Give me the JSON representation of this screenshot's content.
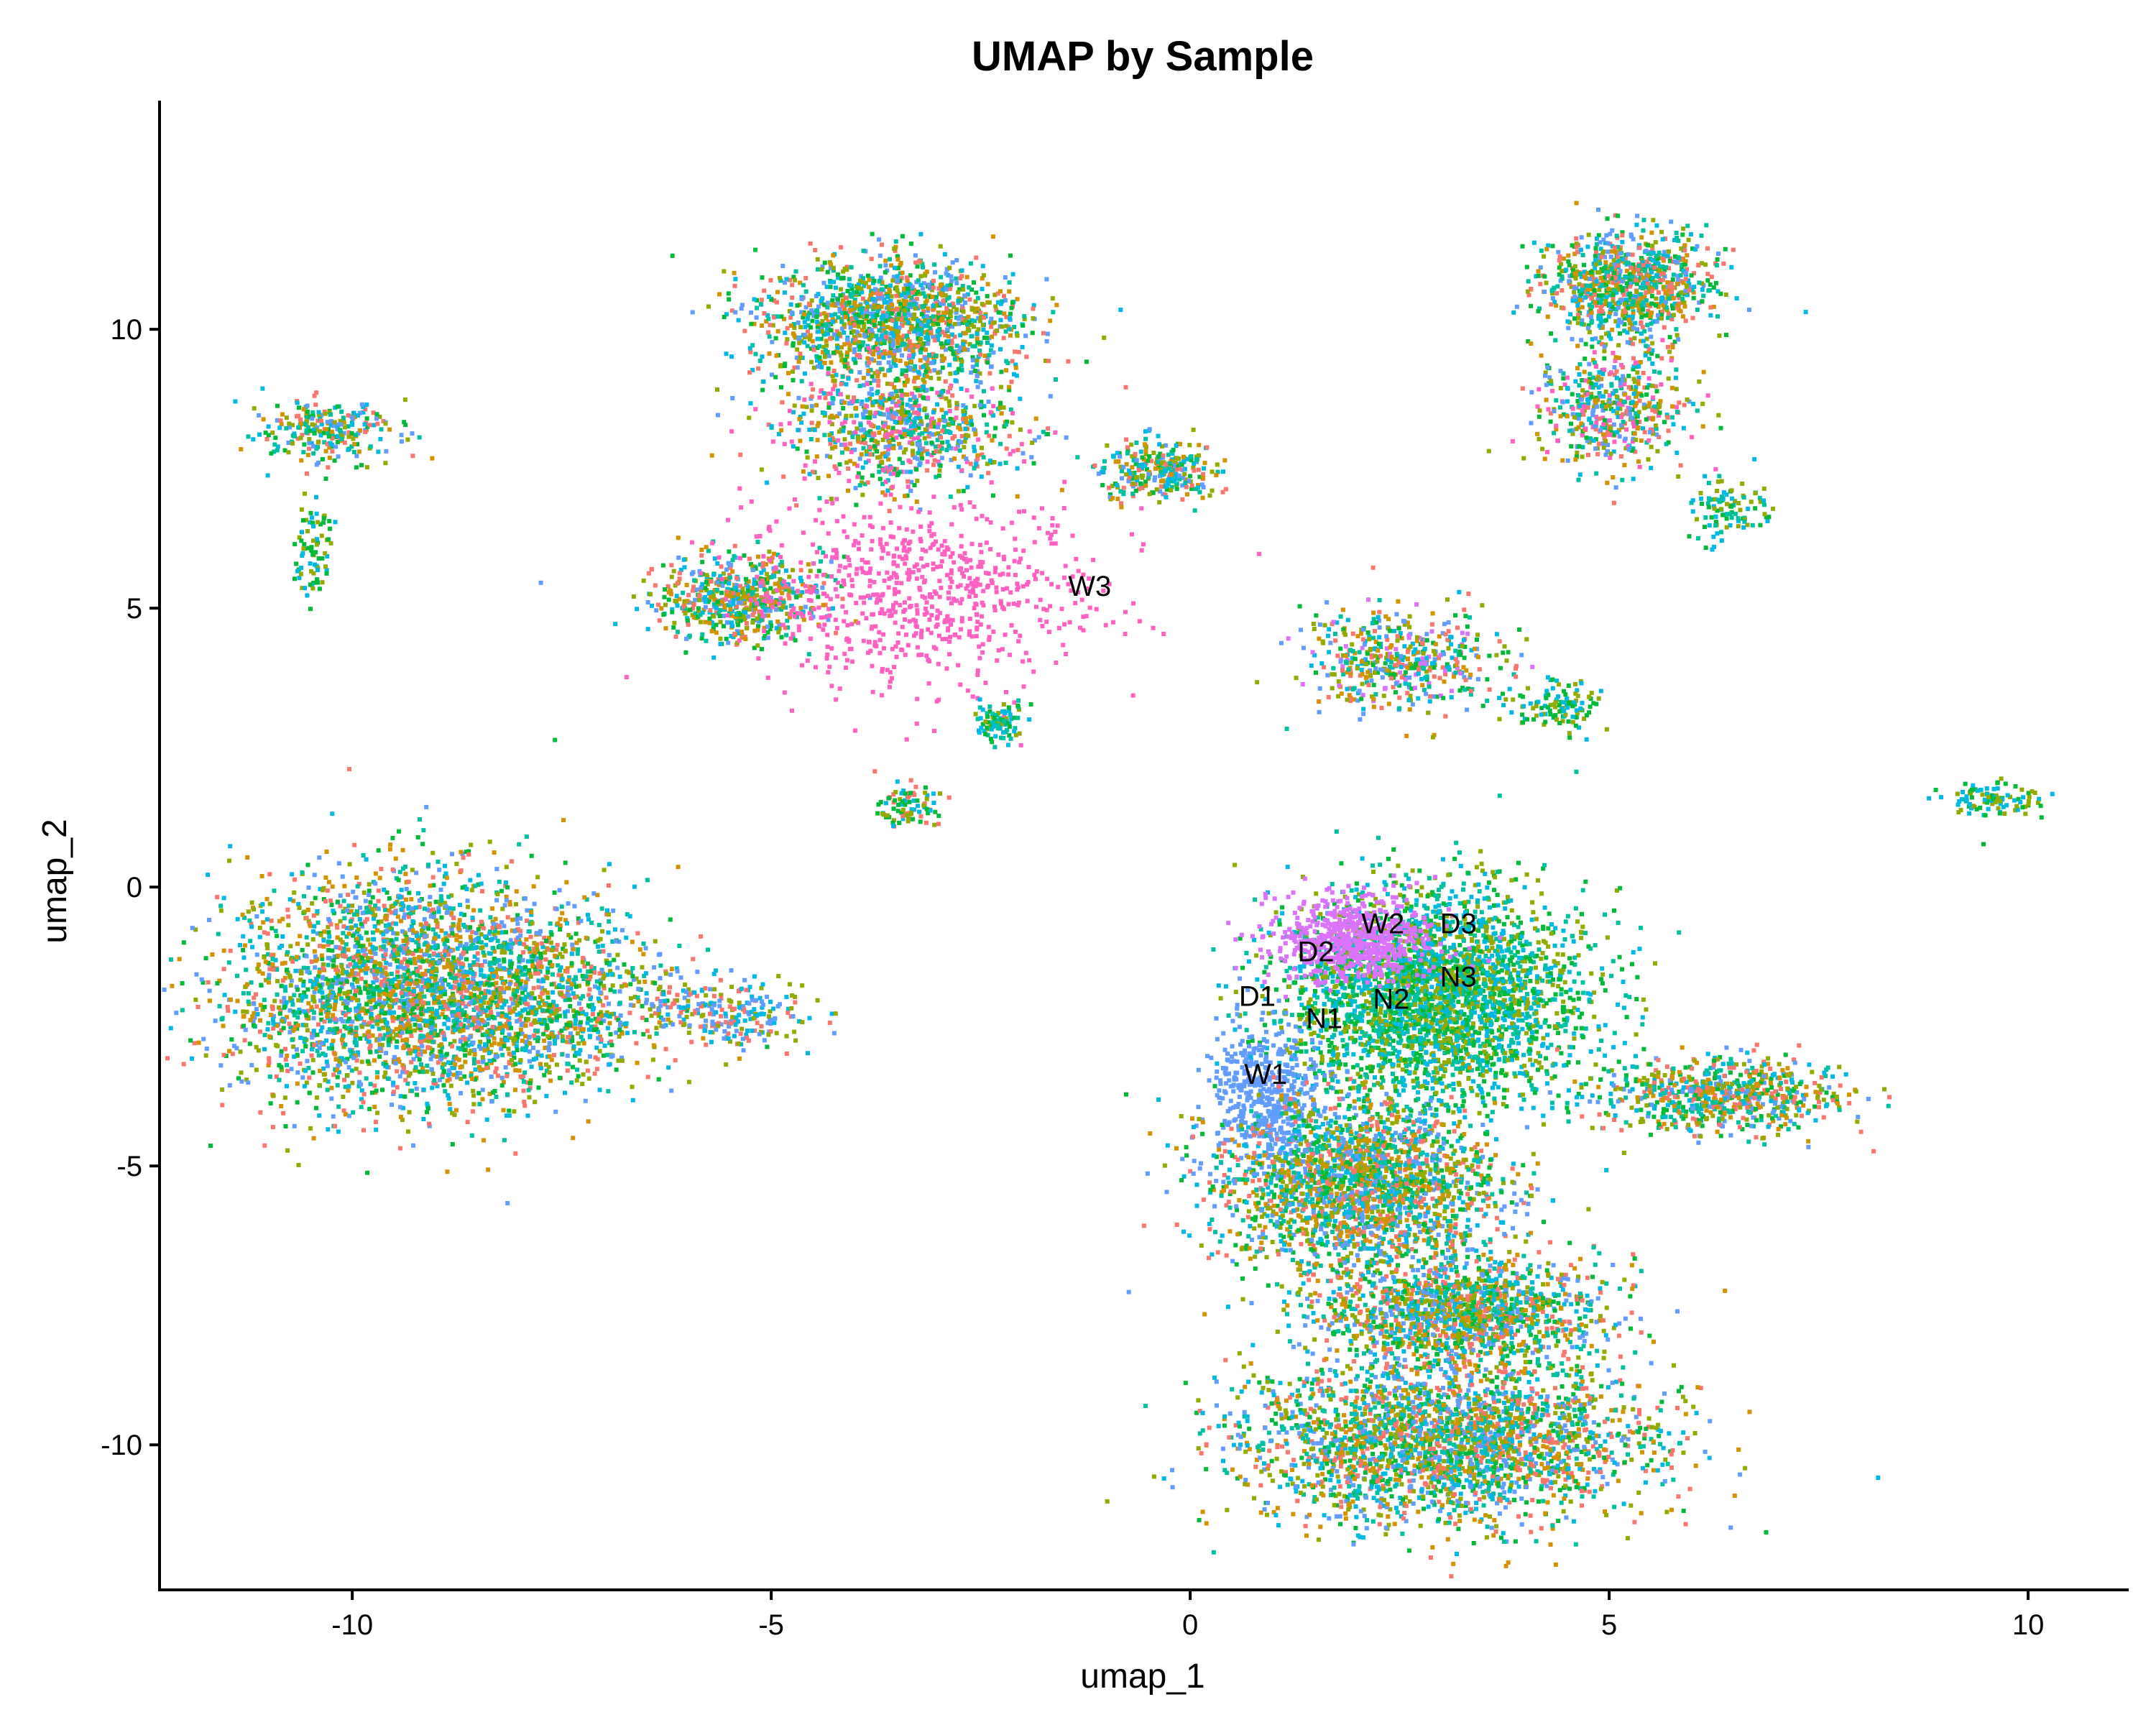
{
  "chart_data": {
    "type": "scatter",
    "title": "UMAP by Sample",
    "xlabel": "umap_1",
    "ylabel": "umap_2",
    "xlim": [
      -12.3,
      11.2
    ],
    "ylim": [
      -12.6,
      14.1
    ],
    "x_ticks": [
      -10,
      -5,
      0,
      5,
      10
    ],
    "y_ticks": [
      10,
      5,
      0,
      -5,
      -10
    ],
    "x_tick_labels": [
      "-10",
      "-5",
      "0",
      "5",
      "10"
    ],
    "y_tick_labels": [
      "10",
      "5",
      "0",
      "-5",
      "-10"
    ],
    "grid": false,
    "legend": "none",
    "series": [
      {
        "name": "D1",
        "color": "#F8766D"
      },
      {
        "name": "D2",
        "color": "#D39200"
      },
      {
        "name": "D3",
        "color": "#93AA00"
      },
      {
        "name": "N1",
        "color": "#00BA38"
      },
      {
        "name": "N2",
        "color": "#00C19F"
      },
      {
        "name": "N3",
        "color": "#00B9E3"
      },
      {
        "name": "W1",
        "color": "#619CFF"
      },
      {
        "name": "W2",
        "color": "#DB72FB"
      },
      {
        "name": "W3",
        "color": "#FF61C3"
      }
    ],
    "point_labels": [
      {
        "text": "W3",
        "x": -1.2,
        "y": 5.4
      },
      {
        "text": "W2",
        "x": 2.3,
        "y": -0.65
      },
      {
        "text": "D3",
        "x": 3.2,
        "y": -0.65
      },
      {
        "text": "D2",
        "x": 1.5,
        "y": -1.15
      },
      {
        "text": "N3",
        "x": 3.2,
        "y": -1.6
      },
      {
        "text": "D1",
        "x": 0.8,
        "y": -1.95
      },
      {
        "text": "N2",
        "x": 2.4,
        "y": -2.0
      },
      {
        "text": "N1",
        "x": 1.6,
        "y": -2.35
      },
      {
        "text": "W1",
        "x": 0.9,
        "y": -3.35
      }
    ],
    "clusters": [
      {
        "cx": -9.5,
        "cy": -1.8,
        "rx": 1.8,
        "ry": 1.9,
        "mix": [
          0,
          1,
          2,
          3,
          4,
          5,
          6
        ],
        "n": 2600
      },
      {
        "cx": -7.8,
        "cy": -2.0,
        "rx": 1.5,
        "ry": 1.5,
        "mix": [
          0,
          1,
          2,
          3,
          4,
          5,
          6
        ],
        "n": 900
      },
      {
        "cx": -5.6,
        "cy": -2.2,
        "rx": 0.9,
        "ry": 0.6,
        "mix": [
          0,
          2,
          5,
          6
        ],
        "n": 260
      },
      {
        "cx": -10.3,
        "cy": 8.2,
        "rx": 0.7,
        "ry": 0.5,
        "mix": [
          0,
          1,
          2,
          3,
          4,
          5,
          6
        ],
        "n": 250
      },
      {
        "cx": -10.5,
        "cy": 6.0,
        "rx": 0.25,
        "ry": 1.0,
        "mix": [
          2,
          3,
          5
        ],
        "n": 80
      },
      {
        "cx": -3.6,
        "cy": 10.2,
        "rx": 1.4,
        "ry": 1.0,
        "mix": [
          0,
          1,
          2,
          3,
          4,
          5,
          6
        ],
        "n": 1400
      },
      {
        "cx": -3.5,
        "cy": 8.3,
        "rx": 1.3,
        "ry": 1.0,
        "mix": [
          0,
          1,
          2,
          3,
          4,
          5,
          6,
          8
        ],
        "n": 800
      },
      {
        "cx": -5.4,
        "cy": 5.2,
        "rx": 0.9,
        "ry": 0.7,
        "mix": [
          0,
          1,
          2,
          3,
          4,
          5,
          6
        ],
        "n": 600
      },
      {
        "cx": -3.2,
        "cy": 5.3,
        "rx": 1.9,
        "ry": 1.6,
        "mix": [
          8
        ],
        "n": 700
      },
      {
        "cx": -0.4,
        "cy": 7.5,
        "rx": 0.6,
        "ry": 0.5,
        "mix": [
          0,
          1,
          2,
          3,
          4,
          5,
          6
        ],
        "n": 300
      },
      {
        "cx": -2.3,
        "cy": 3.0,
        "rx": 0.3,
        "ry": 0.3,
        "mix": [
          2,
          3,
          4,
          5
        ],
        "n": 90
      },
      {
        "cx": -3.4,
        "cy": 1.5,
        "rx": 0.3,
        "ry": 0.35,
        "mix": [
          0,
          2,
          3,
          5
        ],
        "n": 90
      },
      {
        "cx": 5.2,
        "cy": 10.8,
        "rx": 0.9,
        "ry": 0.9,
        "mix": [
          0,
          1,
          2,
          3,
          4,
          5,
          6
        ],
        "n": 900
      },
      {
        "cx": 5.0,
        "cy": 8.6,
        "rx": 0.8,
        "ry": 0.9,
        "mix": [
          0,
          1,
          2,
          3,
          4,
          5,
          6,
          8
        ],
        "n": 500
      },
      {
        "cx": 6.4,
        "cy": 6.8,
        "rx": 0.4,
        "ry": 0.5,
        "mix": [
          2,
          3,
          4,
          5
        ],
        "n": 100
      },
      {
        "cx": 2.5,
        "cy": 4.1,
        "rx": 1.1,
        "ry": 0.8,
        "mix": [
          0,
          1,
          2,
          3,
          4,
          5,
          6,
          7
        ],
        "n": 500
      },
      {
        "cx": 4.3,
        "cy": 3.3,
        "rx": 0.5,
        "ry": 0.4,
        "mix": [
          2,
          3,
          5
        ],
        "n": 120
      },
      {
        "cx": 2.9,
        "cy": -1.9,
        "rx": 1.6,
        "ry": 1.7,
        "mix": [
          2,
          3,
          4,
          5
        ],
        "n": 3000
      },
      {
        "cx": 1.9,
        "cy": -0.9,
        "rx": 0.9,
        "ry": 0.7,
        "mix": [
          7
        ],
        "n": 600
      },
      {
        "cx": 0.9,
        "cy": -3.7,
        "rx": 0.6,
        "ry": 1.2,
        "mix": [
          6
        ],
        "n": 500
      },
      {
        "cx": 2.0,
        "cy": -5.3,
        "rx": 1.5,
        "ry": 1.4,
        "mix": [
          0,
          1,
          2,
          3,
          4,
          5,
          6
        ],
        "n": 2200
      },
      {
        "cx": 3.2,
        "cy": -7.6,
        "rx": 1.5,
        "ry": 0.9,
        "mix": [
          0,
          1,
          2,
          3,
          4,
          5,
          6
        ],
        "n": 1400
      },
      {
        "cx": 3.0,
        "cy": -9.9,
        "rx": 2.2,
        "ry": 1.3,
        "mix": [
          0,
          1,
          2,
          3,
          4,
          5,
          6
        ],
        "n": 2600
      },
      {
        "cx": 6.3,
        "cy": -3.7,
        "rx": 1.3,
        "ry": 0.6,
        "mix": [
          0,
          1,
          2,
          3,
          4,
          5,
          6
        ],
        "n": 700
      },
      {
        "cx": 9.6,
        "cy": 1.6,
        "rx": 0.5,
        "ry": 0.3,
        "mix": [
          2,
          3,
          5
        ],
        "n": 100
      }
    ]
  }
}
